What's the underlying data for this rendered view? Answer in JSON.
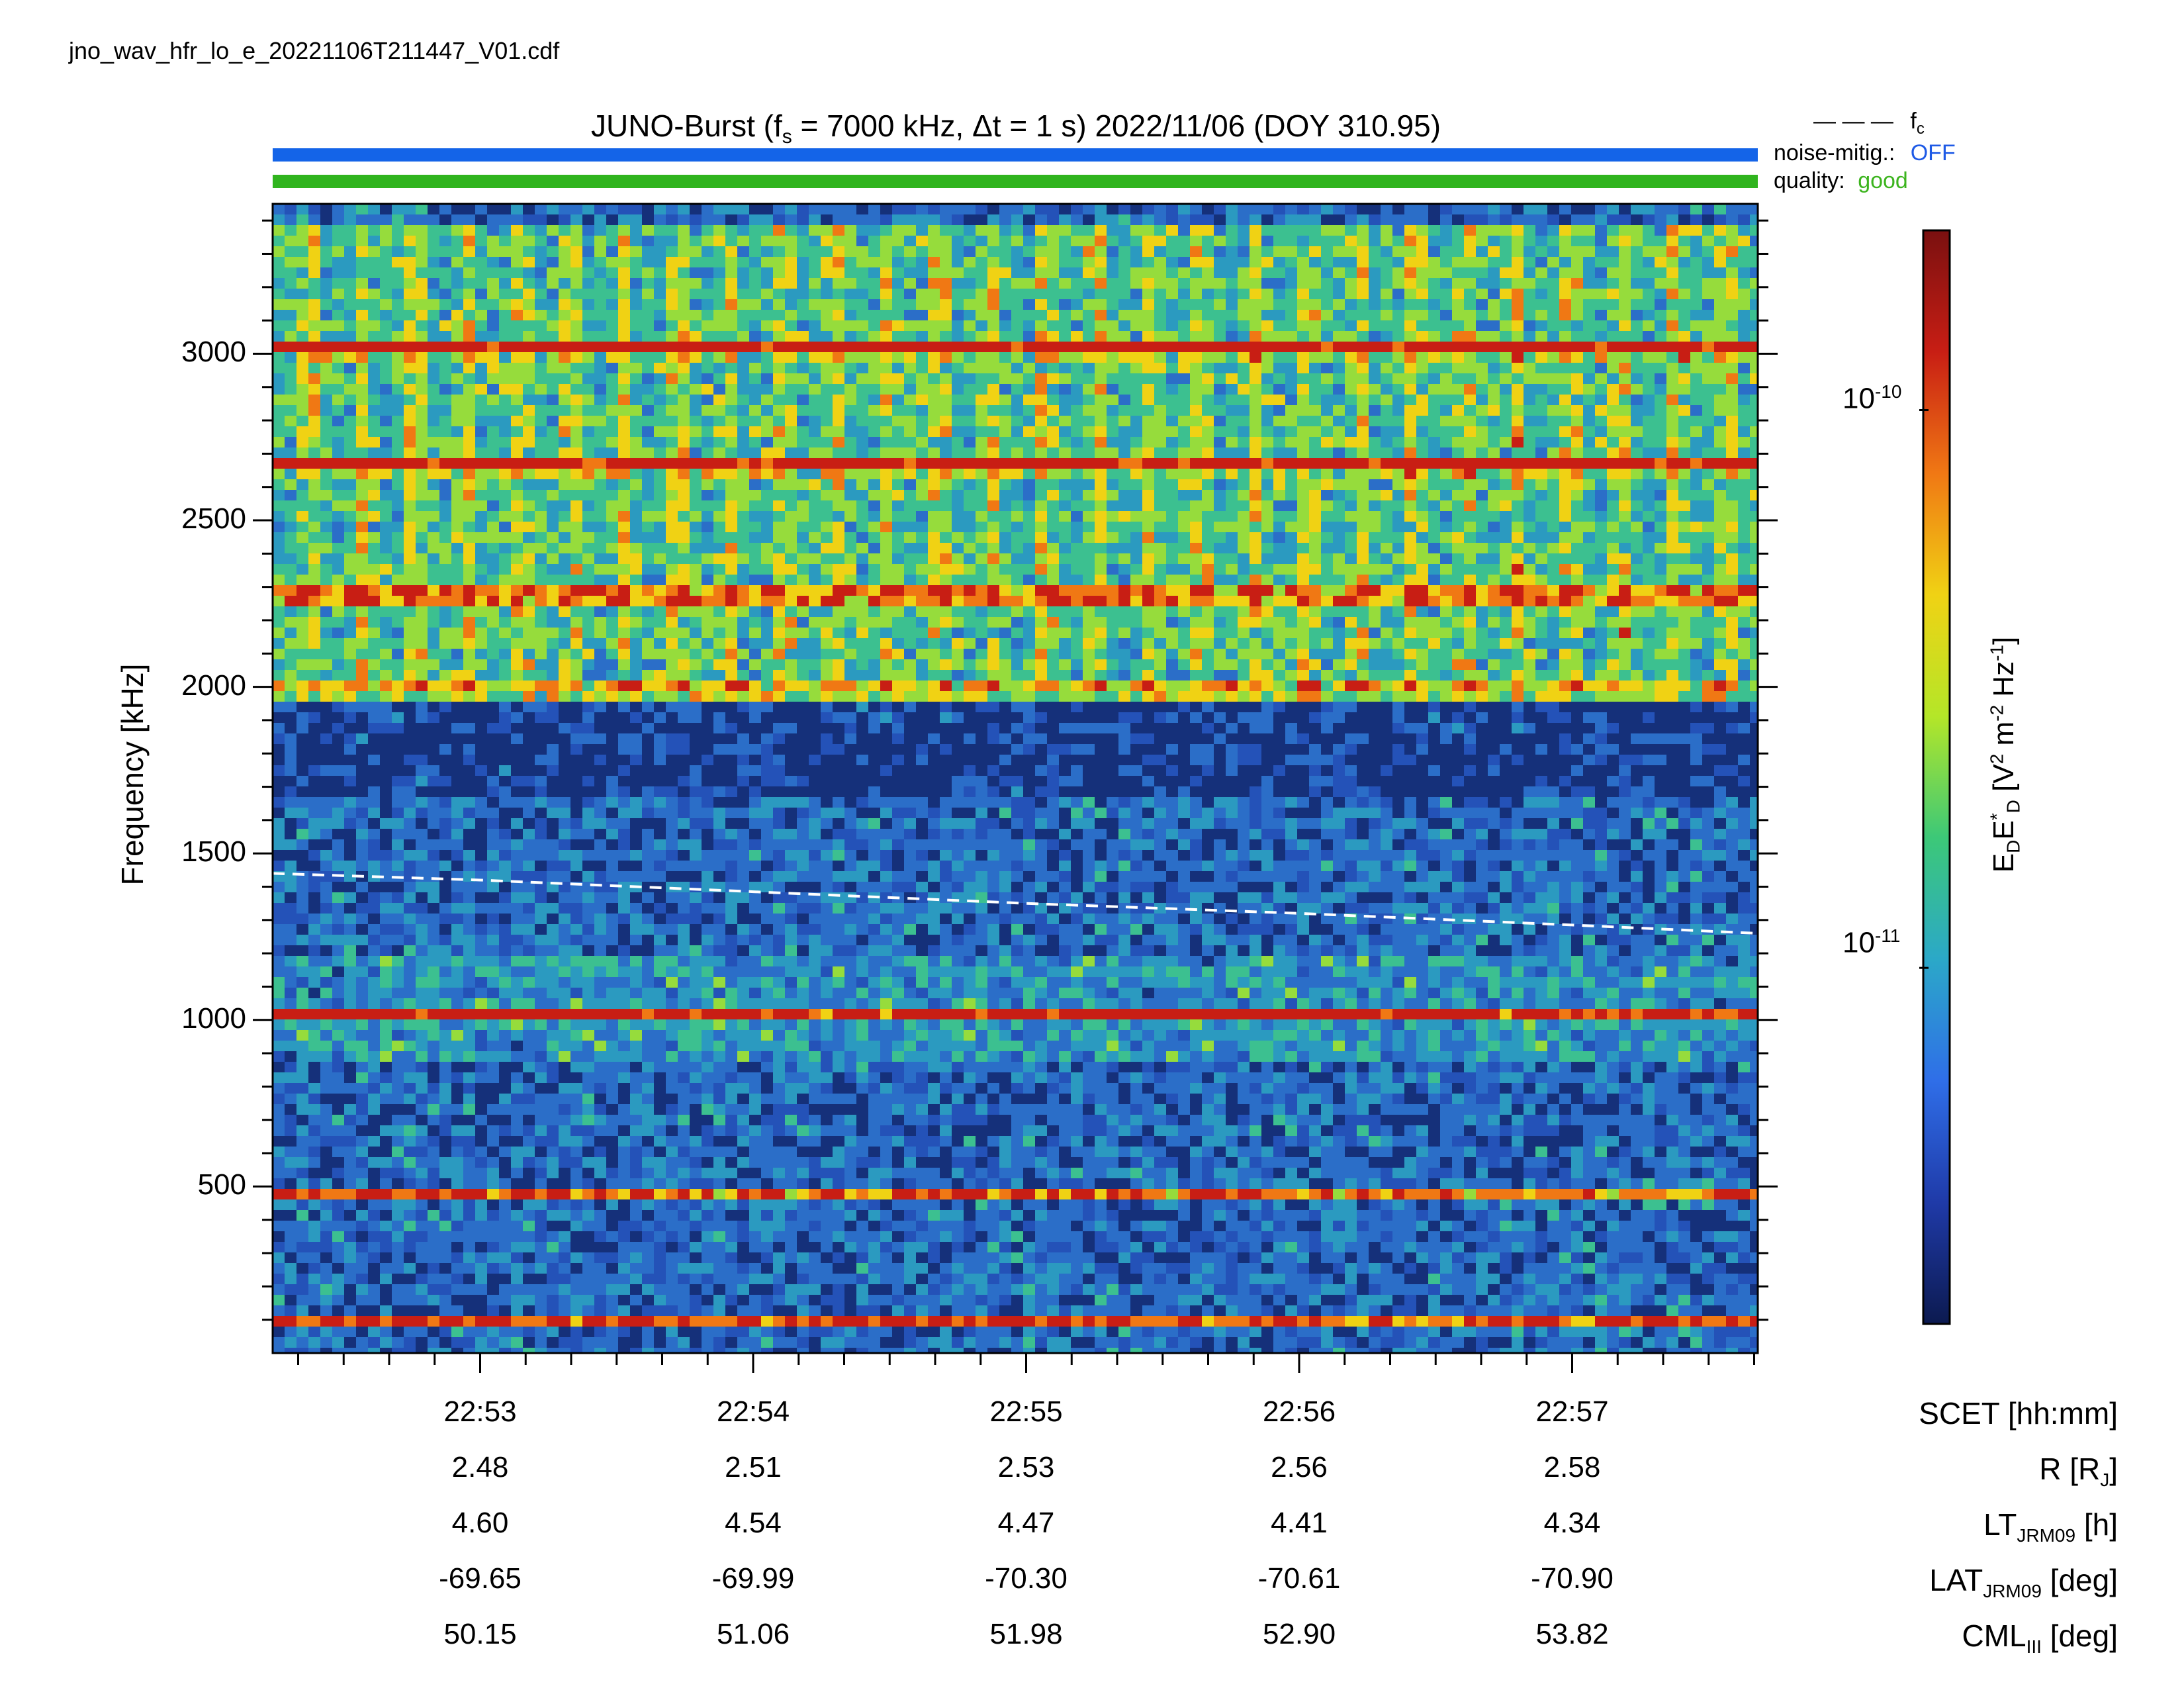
{
  "file_name": "jno_wav_hfr_lo_e_20221106T211447_V01.cdf",
  "header": {
    "title_prefix": "JUNO-Burst (f",
    "title_sub": "s",
    "title_rest": " = 7000 kHz, Δt = 1 s)  2022/11/06 (DOY 310.95)",
    "fc_legend_symbol": "— — —",
    "fc_label": "f",
    "fc_sub": "c",
    "noise_label": "noise-mitig.:",
    "noise_value": "OFF",
    "quality_label": "quality:",
    "quality_value": "good"
  },
  "colors": {
    "noise_bar": "#1464e8",
    "quality_bar": "#30b41e",
    "noise_value": "#1e5ae6",
    "quality_value": "#3cb41e",
    "background_spectrogram": "#15307a"
  },
  "chart_data": {
    "type": "heatmap",
    "ylabel": "Frequency [kHz]",
    "ylim": [
      0,
      3450
    ],
    "y_ticks": [
      "3000",
      "2500",
      "2000",
      "1500",
      "1000",
      "500"
    ],
    "y_tick_values": [
      3000,
      2500,
      2000,
      1500,
      1000,
      500
    ],
    "x_range_minutes": [
      52.24,
      57.68
    ],
    "x_ticks": [
      "22:53",
      "22:54",
      "22:55",
      "22:56",
      "22:57"
    ],
    "x_tick_minutes": [
      53,
      54,
      55,
      56,
      57
    ],
    "emission_lines_kHz": [
      3030,
      2680,
      2290,
      2000,
      1030,
      490,
      110
    ],
    "fc_line": {
      "label": "fc",
      "minutes": [
        52.24,
        53,
        54,
        55,
        56,
        57,
        57.68
      ],
      "kHz": [
        1440,
        1420,
        1385,
        1350,
        1320,
        1285,
        1260
      ]
    },
    "colorbar": {
      "label_main": "E",
      "label_text": "E",
      "label_units": "[V",
      "label_units2": " m",
      "label_units3": " Hz",
      "ticks": [
        "10",
        "10"
      ],
      "tick_exponents": [
        "-10",
        "-11"
      ],
      "tick_values": [
        1e-10,
        1e-11
      ],
      "scale": "log",
      "colormap": [
        "#0c1a50",
        "#1f3aa8",
        "#2f6ee8",
        "#2ba8c8",
        "#3cc878",
        "#b4e628",
        "#f0d214",
        "#f07814",
        "#c81e14",
        "#7a1010"
      ]
    },
    "ephemeris": {
      "rows": [
        {
          "label": "SCET [hh:mm]",
          "values": [
            "22:53",
            "22:54",
            "22:55",
            "22:56",
            "22:57"
          ]
        },
        {
          "label": "R [R",
          "label_sub": "J",
          "label_end": "]",
          "values": [
            "2.48",
            "2.51",
            "2.53",
            "2.56",
            "2.58"
          ]
        },
        {
          "label": "LT",
          "label_sub": "JRM09",
          "label_end": " [h]",
          "values": [
            "4.60",
            "4.54",
            "4.47",
            "4.41",
            "4.34"
          ]
        },
        {
          "label": "LAT",
          "label_sub": "JRM09",
          "label_end": " [deg]",
          "values": [
            "-69.65",
            "-69.99",
            "-70.30",
            "-70.61",
            "-70.90"
          ]
        },
        {
          "label": "CML",
          "label_sub": "III",
          "label_end": " [deg]",
          "values": [
            "50.15",
            "51.06",
            "51.98",
            "52.90",
            "53.82"
          ]
        }
      ]
    }
  }
}
